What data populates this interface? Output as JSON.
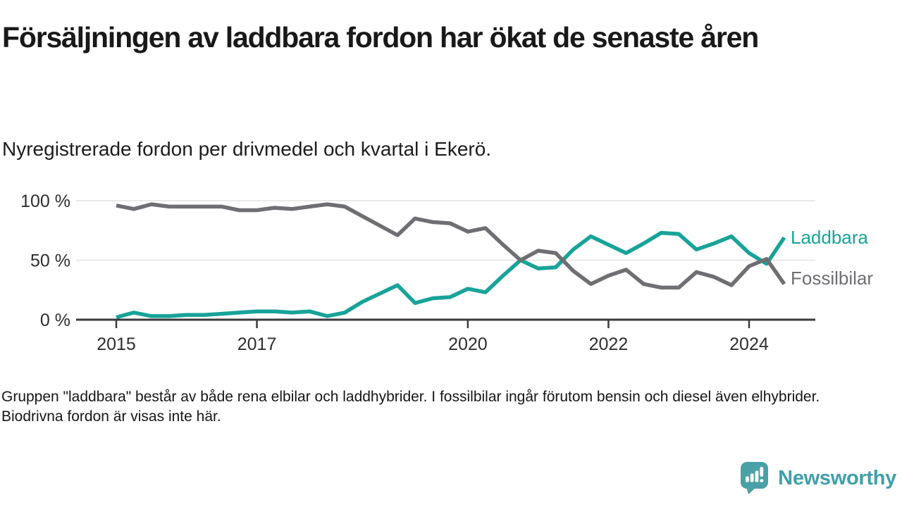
{
  "header": {
    "title": "Försäljningen av laddbara fordon har ökat de senaste åren",
    "subtitle": "Nyregistrerade fordon per drivmedel och kvartal i Ekerö."
  },
  "chart_data": {
    "type": "line",
    "x_unit": "quarter",
    "x": [
      "2015-Q1",
      "2015-Q2",
      "2015-Q3",
      "2015-Q4",
      "2016-Q1",
      "2016-Q2",
      "2016-Q3",
      "2016-Q4",
      "2017-Q1",
      "2017-Q2",
      "2017-Q3",
      "2017-Q4",
      "2018-Q1",
      "2018-Q2",
      "2018-Q3",
      "2018-Q4",
      "2019-Q1",
      "2019-Q2",
      "2019-Q3",
      "2019-Q4",
      "2020-Q1",
      "2020-Q2",
      "2020-Q3",
      "2020-Q4",
      "2021-Q1",
      "2021-Q2",
      "2021-Q3",
      "2021-Q4",
      "2022-Q1",
      "2022-Q2",
      "2022-Q3",
      "2022-Q4",
      "2023-Q1",
      "2023-Q2",
      "2023-Q3",
      "2023-Q4",
      "2024-Q1",
      "2024-Q2",
      "2024-Q3"
    ],
    "series": [
      {
        "name": "Laddbara",
        "color": "#18a399",
        "values": [
          2,
          6,
          3,
          3,
          4,
          4,
          5,
          6,
          7,
          7,
          6,
          7,
          3,
          6,
          15,
          22,
          29,
          14,
          18,
          19,
          26,
          23,
          37,
          50,
          43,
          44,
          59,
          70,
          63,
          56,
          64,
          73,
          72,
          59,
          64,
          70,
          56,
          47,
          69
        ]
      },
      {
        "name": "Fossilbilar",
        "color": "#6e6e73",
        "values": [
          96,
          93,
          97,
          95,
          95,
          95,
          95,
          92,
          92,
          94,
          93,
          95,
          97,
          95,
          87,
          79,
          71,
          85,
          82,
          81,
          74,
          77,
          63,
          50,
          58,
          56,
          41,
          30,
          37,
          42,
          30,
          27,
          27,
          40,
          36,
          29,
          45,
          51,
          30
        ]
      }
    ],
    "ylim": [
      0,
      100
    ],
    "yticks": [
      {
        "value": 0,
        "label": "0 %"
      },
      {
        "value": 50,
        "label": "50 %"
      },
      {
        "value": 100,
        "label": "100 %"
      }
    ],
    "xticks": [
      {
        "index": 0,
        "label": "2015"
      },
      {
        "index": 8,
        "label": "2017"
      },
      {
        "index": 20,
        "label": "2020"
      },
      {
        "index": 28,
        "label": "2022"
      },
      {
        "index": 36,
        "label": "2024"
      }
    ],
    "grid": "horizontal",
    "legend_position": "end-of-line-right",
    "axis_color": "#3a3a3e",
    "grid_color": "#e2e2e2",
    "tick_label_color": "#2e2e2e"
  },
  "footer": {
    "note": "Gruppen \"laddbara\" består av både rena elbilar och laddhybrider. I fossilbilar ingår förutom bensin och diesel även elhybrider. Biodrivna fordon är visas inte här."
  },
  "branding": {
    "logo_text": "Newsworthy",
    "logo_icon": "speech-bubble-bar-chart-icon",
    "logo_color": "#4aa0a7",
    "logo_text_color": "#3fa0a8"
  }
}
